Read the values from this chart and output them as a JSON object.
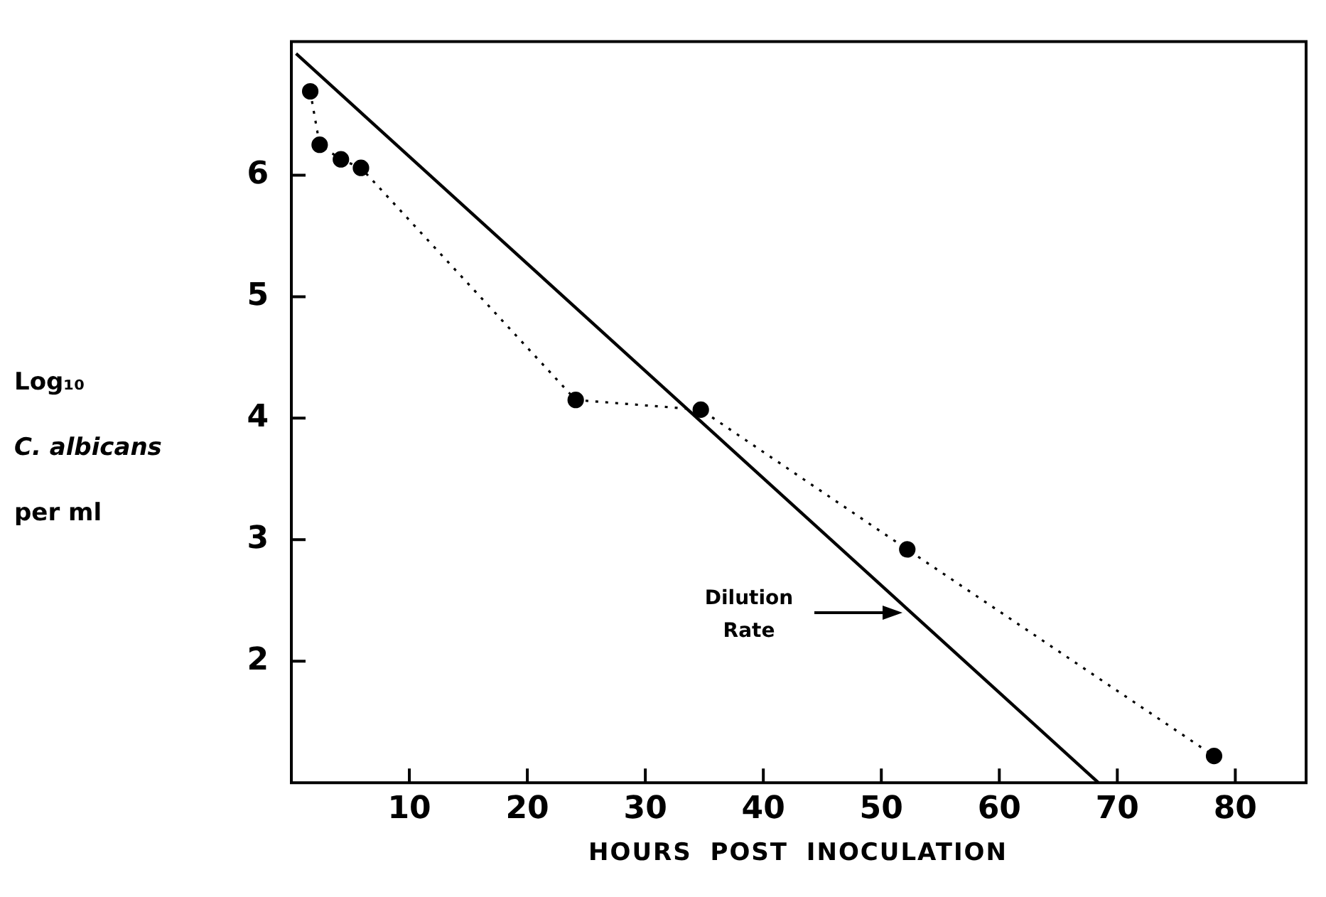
{
  "chart_data": {
    "type": "line",
    "xlabel": "HOURS POST INOCULATION",
    "ylabel": "Log₁₀ C. albicans per ml",
    "xlim": [
      0,
      86
    ],
    "ylim": [
      1,
      7.1
    ],
    "xticks": [
      10,
      20,
      30,
      40,
      50,
      60,
      70,
      80
    ],
    "yticks": [
      2,
      3,
      4,
      5,
      6
    ],
    "series": [
      {
        "x": [
          1.6,
          2.4,
          4.2,
          5.9,
          24.1,
          34.7,
          52.2,
          78.2
        ],
        "values": [
          6.69,
          6.25,
          6.13,
          6.06,
          4.15,
          4.07,
          2.92,
          1.22
        ],
        "color": "#000000",
        "marker": "circle",
        "line_style": "dotted"
      },
      {
        "x": [
          0.4,
          68.4
        ],
        "values": [
          7.0,
          1.0
        ],
        "color": "#000000",
        "marker": "none",
        "line_style": "solid"
      }
    ],
    "annotations": [
      "Dilution Rate"
    ]
  }
}
